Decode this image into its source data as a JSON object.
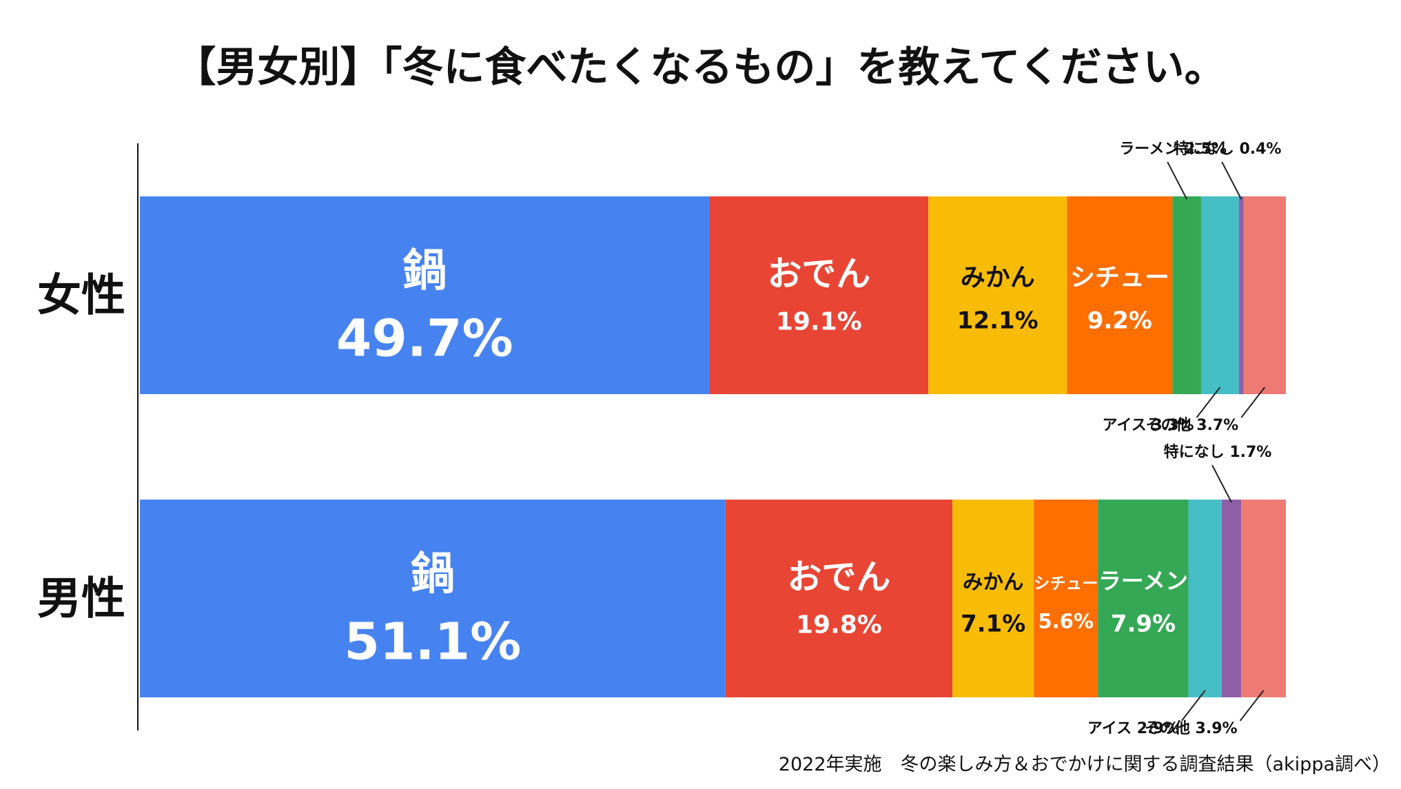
{
  "chart_data": {
    "type": "bar",
    "orientation": "horizontal",
    "stacked": true,
    "title": "【男女別】「冬に食べたくなるもの」を教えてください。",
    "source": "2022年実施　冬の楽しみ方＆おでかけに関する調査結果（akippa調べ）",
    "categories": [
      "女性",
      "男性"
    ],
    "series": [
      {
        "name": "鍋",
        "color": "#4783F0",
        "text_color": "#ffffff",
        "values": [
          49.7,
          51.1
        ],
        "labels": [
          "49.7%",
          "51.1%"
        ]
      },
      {
        "name": "おでん",
        "color": "#E94535",
        "text_color": "#ffffff",
        "values": [
          19.1,
          19.8
        ],
        "labels": [
          "19.1%",
          "19.8%"
        ]
      },
      {
        "name": "みかん",
        "color": "#F9BC06",
        "text_color": "#111111",
        "values": [
          12.1,
          7.1
        ],
        "labels": [
          "12.1%",
          "7.1%"
        ]
      },
      {
        "name": "シチュー",
        "color": "#FE6E01",
        "text_color": "#ffffff",
        "values": [
          9.2,
          5.6
        ],
        "labels": [
          "9.2%",
          "5.6%"
        ]
      },
      {
        "name": "ラーメン",
        "color": "#34A855",
        "text_color": "#ffffff",
        "values": [
          2.5,
          7.9
        ],
        "labels": [
          "2.5%",
          "7.9%"
        ]
      },
      {
        "name": "アイス",
        "color": "#45BEC5",
        "text_color": "#111111",
        "values": [
          3.3,
          2.9
        ],
        "labels": [
          "3.3%",
          "2.9%"
        ]
      },
      {
        "name": "特になし",
        "color": "#8F5FA6",
        "text_color": "#111111",
        "values": [
          0.4,
          1.7
        ],
        "labels": [
          "0.4%",
          "1.7%"
        ]
      },
      {
        "name": "その他",
        "color": "#EE7B73",
        "text_color": "#111111",
        "values": [
          3.7,
          3.9
        ],
        "labels": [
          "3.7%",
          "3.9%"
        ]
      }
    ],
    "callouts": [
      [
        "inside",
        "inside",
        "inside",
        "inside",
        "above",
        "below",
        "above",
        "below"
      ],
      [
        "inside",
        "inside",
        "inside",
        "inside",
        "inside",
        "below",
        "above",
        "below"
      ]
    ],
    "xlim": [
      0,
      100
    ],
    "legend": "none"
  }
}
